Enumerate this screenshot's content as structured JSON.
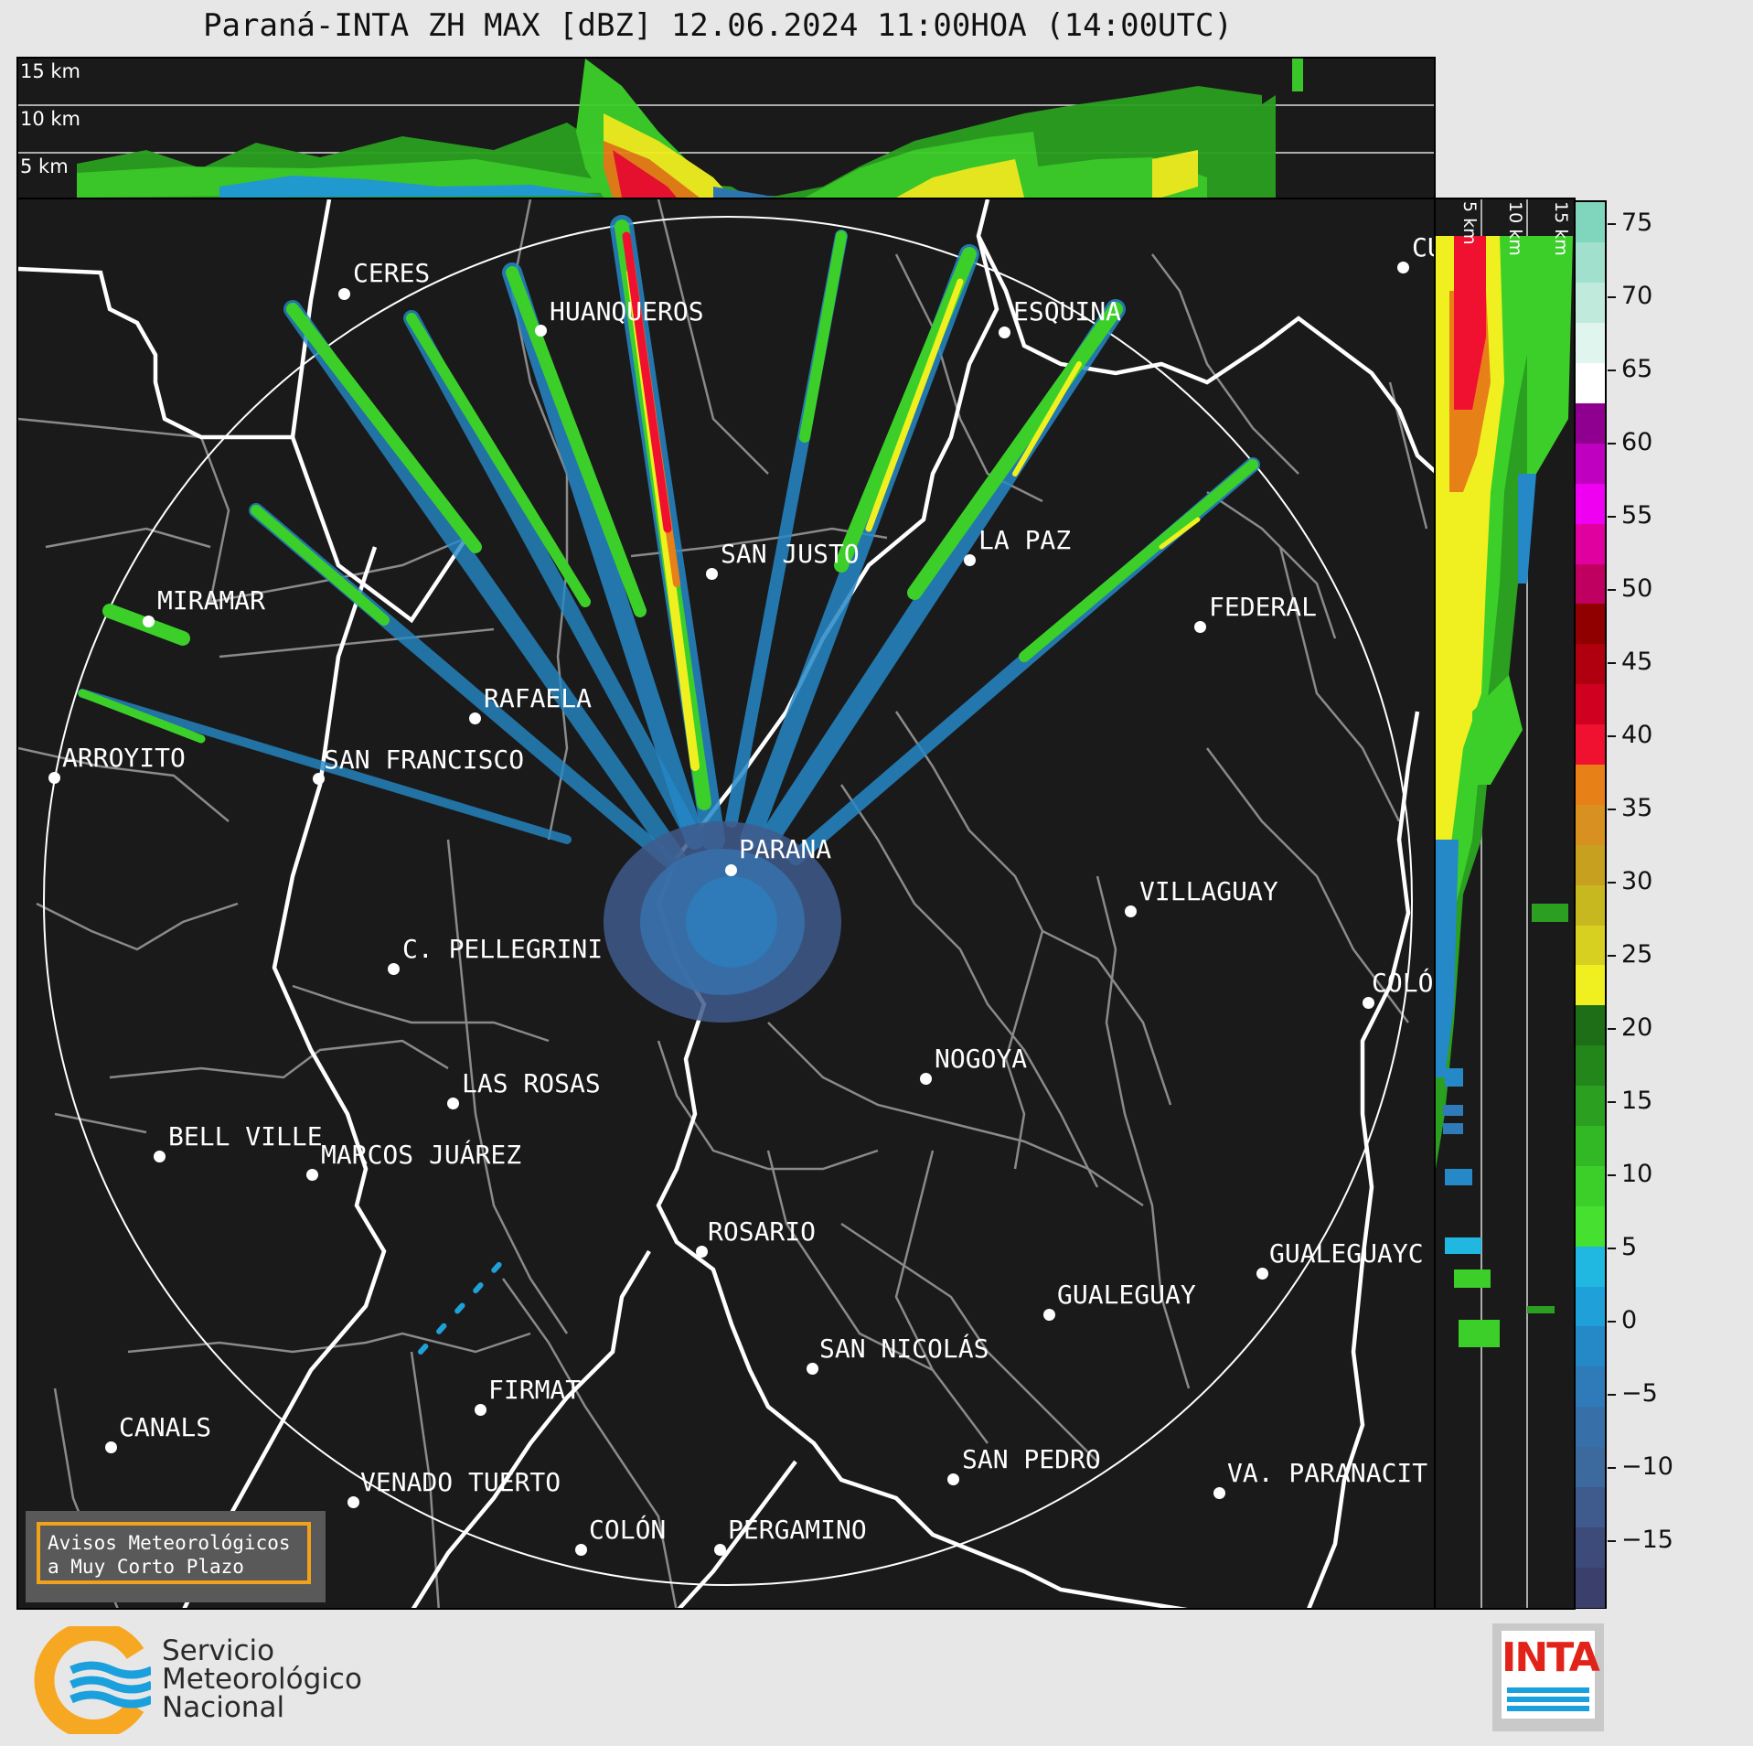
{
  "title": "Paraná-INTA ZH MAX [dBZ] 12.06.2024 11:00HOA (14:00UTC)",
  "top_panel": {
    "alt_labels": [
      "15 km",
      "10 km",
      "5 km"
    ]
  },
  "right_panel": {
    "alt_labels": [
      "5 km",
      "10 km",
      "15 km"
    ]
  },
  "cities": [
    {
      "name": "CERES"
    },
    {
      "name": "HUANQUEROS"
    },
    {
      "name": "ESQUINA"
    },
    {
      "name": "CU"
    },
    {
      "name": "LA PAZ"
    },
    {
      "name": "SAN JUSTO"
    },
    {
      "name": "MIRAMAR"
    },
    {
      "name": "FEDERAL"
    },
    {
      "name": "RAFAELA"
    },
    {
      "name": "ARROYITO"
    },
    {
      "name": "SAN FRANCISCO"
    },
    {
      "name": "PARANA"
    },
    {
      "name": "VILLAGUAY"
    },
    {
      "name": "C. PELLEGRINI"
    },
    {
      "name": "COLÓ"
    },
    {
      "name": "NOGOYA"
    },
    {
      "name": "LAS ROSAS"
    },
    {
      "name": "BELL VILLE"
    },
    {
      "name": "MARCOS JUÁREZ"
    },
    {
      "name": "ROSARIO"
    },
    {
      "name": "GUALEGUAYC"
    },
    {
      "name": "GUALEGUAY"
    },
    {
      "name": "SAN NICOLÁS"
    },
    {
      "name": "FIRMAT"
    },
    {
      "name": "CANALS"
    },
    {
      "name": "SAN PEDRO"
    },
    {
      "name": "VA. PARANACIT"
    },
    {
      "name": "VENADO TUERTO"
    },
    {
      "name": "COLÓN"
    },
    {
      "name": "PERGAMINO"
    }
  ],
  "colorbar": {
    "unit": "dBZ",
    "ticks": [
      "75",
      "70",
      "65",
      "60",
      "55",
      "50",
      "45",
      "40",
      "35",
      "30",
      "25",
      "20",
      "15",
      "10",
      "5",
      "0",
      "−5",
      "−10",
      "−15"
    ],
    "colors": [
      "#3b3f6b",
      "#3d4b7a",
      "#3f5a8c",
      "#3c6a9e",
      "#376fa8",
      "#2f7ab8",
      "#2588c7",
      "#20a0d8",
      "#20b8e0",
      "#45e030",
      "#3ccf2a",
      "#33b825",
      "#2a9f20",
      "#22861b",
      "#1d6e16",
      "#f0f020",
      "#d8d020",
      "#c8b820",
      "#c8a020",
      "#d89020",
      "#e88018",
      "#f01030",
      "#d00020",
      "#b00010",
      "#900000",
      "#c00060",
      "#e000a0",
      "#f000f0",
      "#c000c0",
      "#900090",
      "#ffffff",
      "#e0f5ee",
      "#c0ebdc",
      "#a0e0cc",
      "#80d6bc"
    ]
  },
  "notice": {
    "line1": "Avisos Meteorológicos",
    "line2": "a Muy Corto Plazo"
  },
  "branding": {
    "smn_line1": "Servicio",
    "smn_line2": "Meteorológico",
    "smn_line3": "Nacional",
    "inta": "INTA"
  },
  "colors": {
    "background": "#e7e7e7",
    "map_bg": "#1a1a1a",
    "notice_border": "#f2a11b",
    "inta_red": "#e2231a",
    "smn_blue": "#1aa0dc",
    "smn_orange": "#f7a823"
  }
}
